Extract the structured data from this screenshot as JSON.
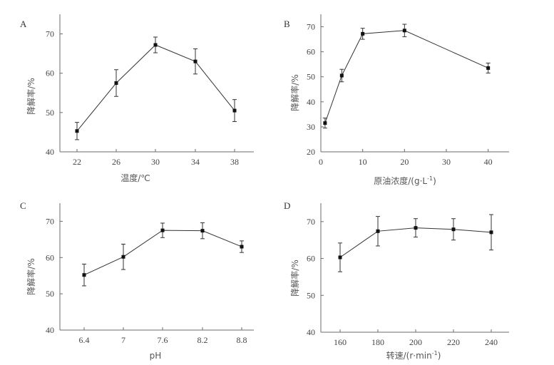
{
  "chart_data": [
    {
      "type": "line",
      "panel": "A",
      "x": [
        "22",
        "26",
        "30",
        "34",
        "38"
      ],
      "values": [
        45.3,
        57.5,
        67.2,
        63.0,
        50.5
      ],
      "errors": [
        2.2,
        3.4,
        2.0,
        3.2,
        2.8
      ],
      "xlabel": "温度/℃",
      "ylabel": "降解率/%",
      "ylim": [
        40,
        75
      ],
      "yticks": [
        "40",
        "50",
        "60",
        "70"
      ]
    },
    {
      "type": "line",
      "panel": "B",
      "x": [
        1,
        5,
        10,
        20,
        40
      ],
      "values": [
        31.5,
        50.5,
        67.2,
        68.5,
        53.5
      ],
      "errors": [
        2.0,
        2.5,
        2.2,
        2.5,
        2.0
      ],
      "xlabel": "原油浓度/(g·L",
      "xlabel_sup": "-1",
      "xlabel_end": ")",
      "ylabel": "降解率/%",
      "xlim": [
        0,
        45
      ],
      "ylim": [
        20,
        75
      ],
      "xticks": [
        "0",
        "10",
        "20",
        "30",
        "40"
      ],
      "yticks": [
        "20",
        "30",
        "40",
        "50",
        "60",
        "70"
      ]
    },
    {
      "type": "line",
      "panel": "C",
      "x": [
        "6.4",
        "7",
        "7.6",
        "8.2",
        "8.8"
      ],
      "values": [
        55.2,
        60.2,
        67.5,
        67.4,
        63.0
      ],
      "errors": [
        3.0,
        3.5,
        2.0,
        2.2,
        1.6
      ],
      "xlabel": "pH",
      "ylabel": "降解率/%",
      "ylim": [
        40,
        75
      ],
      "yticks": [
        "40",
        "50",
        "60",
        "70"
      ]
    },
    {
      "type": "line",
      "panel": "D",
      "x": [
        "160",
        "180",
        "200",
        "220",
        "240"
      ],
      "values": [
        60.3,
        67.4,
        68.3,
        67.9,
        67.1
      ],
      "errors": [
        3.9,
        4.0,
        2.5,
        2.9,
        4.8
      ],
      "xlabel": "转速/(r·min",
      "xlabel_sup": "-1",
      "xlabel_end": ")",
      "ylabel": "降解率/%",
      "ylim": [
        40,
        75
      ],
      "yticks": [
        "40",
        "50",
        "60",
        "70"
      ]
    }
  ]
}
